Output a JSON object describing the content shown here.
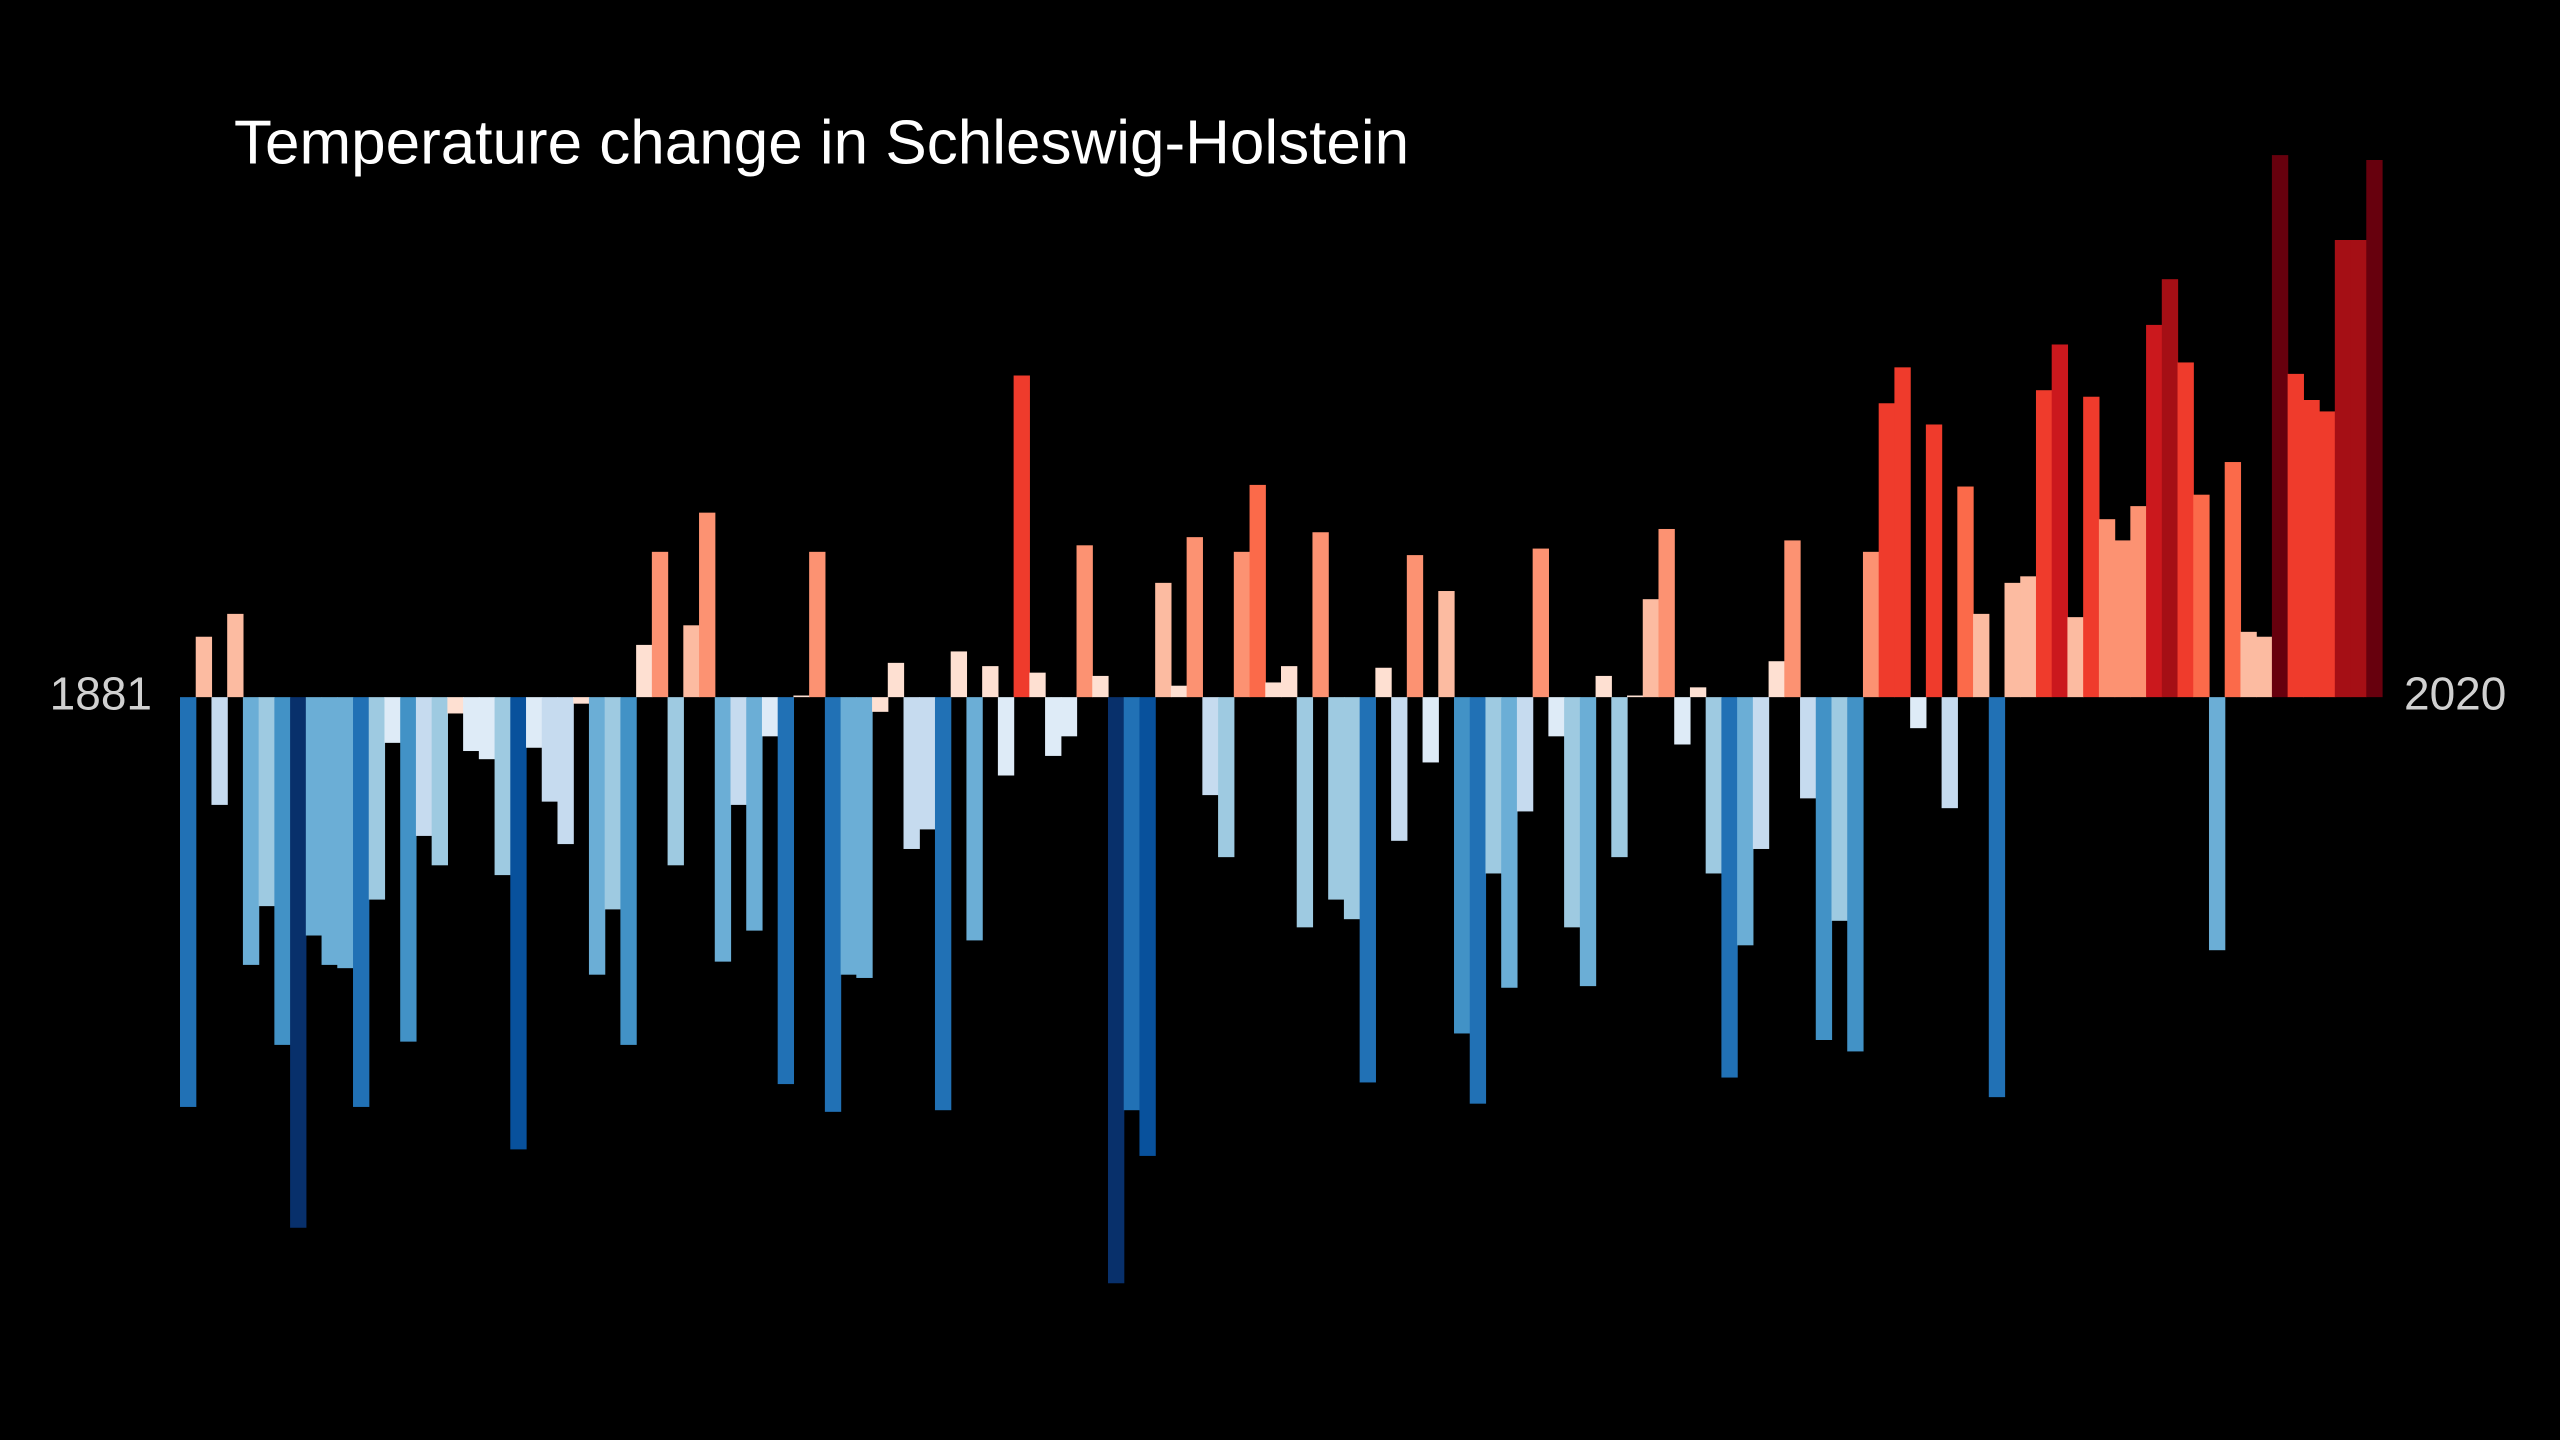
{
  "chart_data": {
    "type": "bar",
    "title": "Temperature change in Schleswig-Holstein",
    "categories": [
      "1881",
      null,
      null,
      null,
      null,
      null,
      null,
      null,
      null,
      null,
      null,
      null,
      null,
      null,
      null,
      null,
      null,
      null,
      null,
      null,
      null,
      null,
      null,
      null,
      null,
      null,
      null,
      null,
      null,
      null,
      null,
      null,
      null,
      null,
      null,
      null,
      null,
      null,
      null,
      null,
      null,
      null,
      null,
      null,
      null,
      null,
      null,
      null,
      null,
      null,
      null,
      null,
      null,
      null,
      null,
      null,
      null,
      null,
      null,
      null,
      null,
      null,
      null,
      null,
      null,
      null,
      null,
      null,
      null,
      null,
      null,
      null,
      null,
      null,
      null,
      null,
      null,
      null,
      null,
      null,
      null,
      null,
      null,
      null,
      null,
      null,
      null,
      null,
      null,
      null,
      null,
      null,
      null,
      null,
      null,
      null,
      null,
      null,
      null,
      null,
      null,
      null,
      null,
      null,
      null,
      null,
      null,
      null,
      null,
      null,
      null,
      null,
      null,
      null,
      null,
      null,
      null,
      null,
      null,
      null,
      null,
      null,
      null,
      null,
      null,
      null,
      null,
      null,
      null,
      null,
      null,
      null,
      null,
      null,
      null,
      null,
      null,
      null,
      null,
      "2020"
    ],
    "values": [
      -2.51,
      0.37,
      -0.66,
      0.51,
      -1.64,
      -1.28,
      -2.13,
      -3.25,
      -1.46,
      -1.64,
      -1.66,
      -2.51,
      -1.24,
      -0.28,
      -2.11,
      -0.85,
      -1.03,
      -0.1,
      -0.33,
      -0.38,
      -1.09,
      -2.77,
      -0.31,
      -0.64,
      -0.9,
      -0.04,
      -1.7,
      -1.3,
      -2.13,
      0.32,
      0.89,
      -1.03,
      0.44,
      1.13,
      -1.62,
      -0.66,
      -1.43,
      -0.24,
      -2.37,
      0.01,
      0.89,
      -2.54,
      -1.7,
      -1.72,
      -0.09,
      0.21,
      -0.93,
      -0.81,
      -2.53,
      0.28,
      -1.49,
      0.19,
      -0.48,
      1.97,
      0.15,
      -0.36,
      -0.24,
      0.93,
      0.13,
      -3.59,
      -2.53,
      -2.81,
      0.7,
      0.07,
      0.98,
      -0.6,
      -0.98,
      0.89,
      1.3,
      0.09,
      0.19,
      -1.41,
      1.01,
      -1.24,
      -1.36,
      -2.36,
      0.18,
      -0.88,
      0.87,
      -0.4,
      0.65,
      -2.06,
      -2.49,
      -1.08,
      -1.78,
      -0.7,
      0.91,
      -0.24,
      -1.41,
      -1.77,
      0.13,
      -0.98,
      0.01,
      0.6,
      1.03,
      -0.29,
      0.06,
      -1.08,
      -2.33,
      -1.52,
      -0.93,
      0.22,
      0.96,
      -0.62,
      -2.1,
      -1.37,
      -2.17,
      0.89,
      1.8,
      2.02,
      -0.19,
      1.67,
      -0.68,
      1.29,
      0.51,
      -2.45,
      0.7,
      0.74,
      1.88,
      2.16,
      0.49,
      1.84,
      1.09,
      0.96,
      1.17,
      2.28,
      2.56,
      2.05,
      1.24,
      -1.55,
      1.44,
      0.4,
      0.37,
      3.32,
      1.98,
      1.82,
      1.75,
      2.8,
      2.8,
      3.29
    ],
    "ylim": [
      -4.55,
      4.27
    ],
    "palette": [
      "#08306b",
      "#08519c",
      "#2171b5",
      "#4292c6",
      "#6baed6",
      "#9ecae1",
      "#c6dbef",
      "#deebf7",
      "#fee0d2",
      "#fcbba1",
      "#fc9272",
      "#fb6a4a",
      "#ef3b2c",
      "#cb181d",
      "#a50f15",
      "#67000d"
    ],
    "color_limits": [
      -3.6,
      3.4
    ]
  }
}
